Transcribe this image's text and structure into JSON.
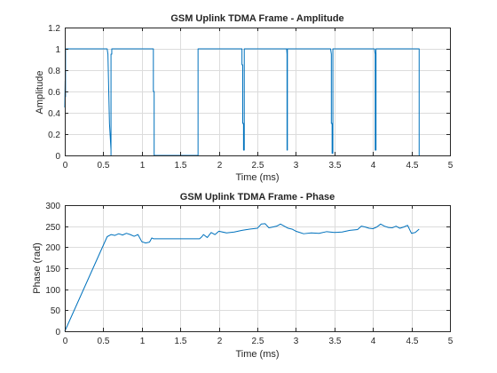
{
  "chart_data": [
    {
      "type": "line",
      "title": "GSM Uplink TDMA Frame - Amplitude",
      "xlabel": "Time (ms)",
      "ylabel": "Amplitude",
      "xlim": [
        0,
        5
      ],
      "ylim": [
        0,
        1.2
      ],
      "xticks": [
        0,
        0.5,
        1,
        1.5,
        2,
        2.5,
        3,
        3.5,
        4,
        4.5,
        5
      ],
      "xtick_labels": [
        "0",
        "0.5",
        "1",
        "1.5",
        "2",
        "2.5",
        "3",
        "3.5",
        "4",
        "4.5",
        "5"
      ],
      "yticks": [
        0,
        0.2,
        0.4,
        0.6,
        0.8,
        1,
        1.2
      ],
      "ytick_labels": [
        "0",
        "0.2",
        "0.4",
        "0.6",
        "0.8",
        "1",
        "1.2"
      ],
      "grid": true,
      "color": "#0072bd",
      "series": [
        {
          "x": [
            0,
            0.005,
            0.01,
            0.01,
            0.02,
            0.02,
            0.55,
            0.56,
            0.58,
            0.6,
            0.6,
            0.6,
            0.61,
            0.61,
            1.15,
            1.15,
            1.16,
            1.16,
            1.73,
            1.73,
            2.3,
            2.3,
            2.31,
            2.31,
            2.32,
            2.32,
            2.33,
            2.33,
            2.88,
            2.885,
            2.885,
            2.89,
            2.89,
            2.9,
            2.9,
            3.45,
            3.46,
            3.46,
            3.47,
            3.47,
            3.48,
            3.48,
            4.02,
            4.03,
            4.03,
            4.04,
            4.04,
            4.06,
            4.06,
            4.6,
            4.6
          ],
          "y": [
            0.45,
            0.7,
            0.55,
            1,
            1,
            1,
            1,
            0.95,
            0.3,
            0.05,
            0,
            0.95,
            0.95,
            1,
            1,
            0.6,
            0.6,
            0,
            0,
            1,
            1,
            0.85,
            0.85,
            0.3,
            0.3,
            0.05,
            0.05,
            1,
            1,
            0.95,
            0.05,
            0.05,
            1,
            1,
            1,
            1,
            0.95,
            0.3,
            0.3,
            0.02,
            0.02,
            1,
            1,
            0.95,
            0.05,
            0.05,
            1,
            1,
            1,
            1,
            0
          ]
        }
      ]
    },
    {
      "type": "line",
      "title": "GSM Uplink TDMA Frame - Phase",
      "xlabel": "Time (ms)",
      "ylabel": "Phase (rad)",
      "xlim": [
        0,
        5
      ],
      "ylim": [
        0,
        300
      ],
      "xticks": [
        0,
        0.5,
        1,
        1.5,
        2,
        2.5,
        3,
        3.5,
        4,
        4.5,
        5
      ],
      "xtick_labels": [
        "0",
        "0.5",
        "1",
        "1.5",
        "2",
        "2.5",
        "3",
        "3.5",
        "4",
        "4.5",
        "5"
      ],
      "yticks": [
        0,
        50,
        100,
        150,
        200,
        250,
        300
      ],
      "ytick_labels": [
        "0",
        "50",
        "100",
        "150",
        "200",
        "250",
        "300"
      ],
      "grid": true,
      "color": "#0072bd",
      "series": [
        {
          "x": [
            0,
            0.55,
            0.6,
            0.65,
            0.7,
            0.75,
            0.8,
            0.85,
            0.9,
            0.95,
            1.0,
            1.05,
            1.1,
            1.13,
            1.15,
            1.2,
            1.75,
            1.78,
            1.8,
            1.85,
            1.9,
            1.95,
            2.0,
            2.1,
            2.2,
            2.3,
            2.4,
            2.5,
            2.55,
            2.6,
            2.65,
            2.7,
            2.75,
            2.8,
            2.85,
            2.9,
            2.95,
            3.0,
            3.05,
            3.1,
            3.2,
            3.3,
            3.4,
            3.5,
            3.6,
            3.7,
            3.8,
            3.85,
            3.9,
            3.95,
            4.0,
            4.05,
            4.1,
            4.15,
            4.2,
            4.25,
            4.3,
            4.35,
            4.4,
            4.45,
            4.5,
            4.55,
            4.6
          ],
          "y": [
            0,
            225,
            230,
            228,
            232,
            229,
            233,
            230,
            226,
            230,
            213,
            210,
            212,
            222,
            220,
            220,
            220,
            225,
            230,
            223,
            235,
            230,
            238,
            234,
            236,
            240,
            243,
            245,
            255,
            256,
            246,
            248,
            250,
            255,
            250,
            245,
            243,
            238,
            235,
            232,
            234,
            233,
            237,
            235,
            236,
            240,
            242,
            250,
            248,
            245,
            244,
            248,
            255,
            250,
            247,
            246,
            250,
            245,
            248,
            252,
            233,
            235,
            243
          ]
        }
      ]
    }
  ]
}
